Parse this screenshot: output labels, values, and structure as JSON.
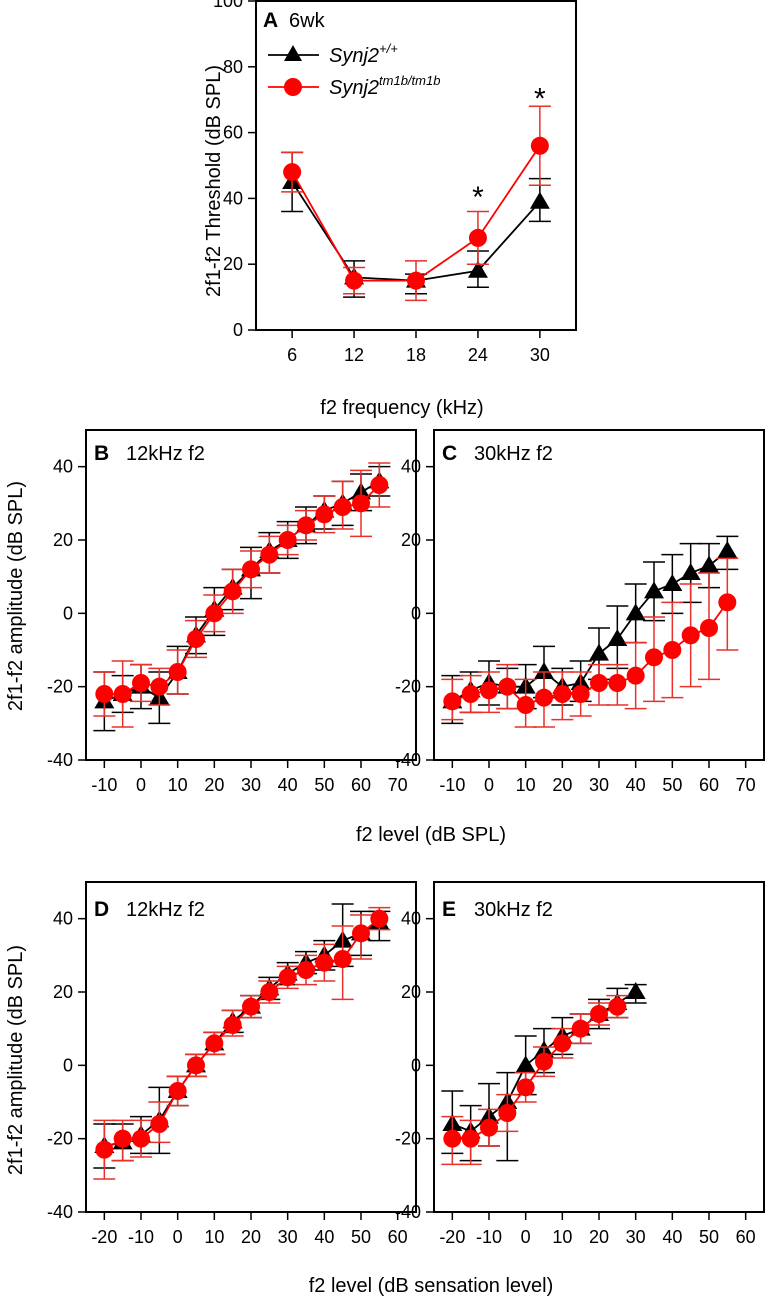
{
  "colors": {
    "wt": "#000000",
    "mut": "#ff0000",
    "mut_err": "#e8312a"
  },
  "chart_data": [
    {
      "id": "A",
      "type": "line",
      "panel_letter": "A",
      "panel_title": "6wk",
      "xlabel": "f2 frequency (kHz)",
      "ylabel": "2f1-f2 Threshold (dB SPL)",
      "xticks": [
        6,
        12,
        18,
        24,
        30
      ],
      "yticks": [
        0,
        20,
        40,
        60,
        80,
        100
      ],
      "xlim": [
        2.5,
        33.5
      ],
      "ylim": [
        0,
        100
      ],
      "legend": [
        {
          "base": "Synj2",
          "sup": "+/+",
          "series": "wt"
        },
        {
          "base": "Synj2",
          "sup": "tm1b/tm1b",
          "series": "mut"
        }
      ],
      "annotations": [
        {
          "x": 24,
          "y": 44,
          "text": "*"
        },
        {
          "x": 30,
          "y": 74,
          "text": "*"
        }
      ],
      "series": [
        {
          "key": "wt",
          "name": "Synj2+/+",
          "marker": "triangle",
          "x": [
            6,
            12,
            18,
            24,
            30
          ],
          "y": [
            45,
            16,
            15,
            18,
            39
          ],
          "err": [
            [
              36,
              54
            ],
            [
              10,
              21
            ],
            [
              11,
              17
            ],
            [
              13,
              24
            ],
            [
              33,
              46
            ]
          ]
        },
        {
          "key": "mut",
          "name": "Synj2tm1b/tm1b",
          "marker": "circle",
          "x": [
            6,
            12,
            18,
            24,
            30
          ],
          "y": [
            48,
            15,
            15,
            28,
            56
          ],
          "err": [
            [
              42,
              54
            ],
            [
              11,
              19
            ],
            [
              9,
              21
            ],
            [
              20,
              36
            ],
            [
              44,
              68
            ]
          ]
        }
      ]
    },
    {
      "id": "B",
      "type": "line",
      "panel_letter": "B",
      "panel_title": "12kHz f2",
      "xlabel": "f2 level (dB SPL)",
      "ylabel": "2f1-f2 amplitude (dB SPL)",
      "xticks": [
        -10,
        0,
        10,
        20,
        30,
        40,
        50,
        60,
        70
      ],
      "yticks": [
        -40,
        -20,
        0,
        20,
        40
      ],
      "xlim": [
        -15,
        75
      ],
      "ylim": [
        -40,
        50
      ],
      "series": [
        {
          "key": "wt",
          "name": "Synj2+/+",
          "marker": "triangle",
          "x": [
            -10,
            -5,
            0,
            5,
            10,
            15,
            20,
            25,
            30,
            35,
            40,
            45,
            50,
            55,
            60,
            65
          ],
          "y": [
            -24,
            -22,
            -20,
            -23,
            -16,
            -6,
            1,
            7,
            12,
            17,
            20,
            24,
            28,
            30,
            33,
            36
          ],
          "err": [
            [
              -32,
              -16
            ],
            [
              -27,
              -17
            ],
            [
              -26,
              -14
            ],
            [
              -30,
              -16
            ],
            [
              -22,
              -9
            ],
            [
              -11,
              -1
            ],
            [
              -6,
              7
            ],
            [
              1,
              12
            ],
            [
              4,
              18
            ],
            [
              11,
              22
            ],
            [
              15,
              25
            ],
            [
              19,
              29
            ],
            [
              23,
              32
            ],
            [
              24,
              36
            ],
            [
              28,
              38
            ],
            [
              32,
              40
            ]
          ]
        },
        {
          "key": "mut",
          "name": "Synj2tm1b/tm1b",
          "marker": "circle",
          "x": [
            -10,
            -5,
            0,
            5,
            10,
            15,
            20,
            25,
            30,
            35,
            40,
            45,
            50,
            55,
            60,
            65
          ],
          "y": [
            -22,
            -22,
            -19,
            -20,
            -16,
            -7,
            0,
            6,
            12,
            16,
            20,
            24,
            27,
            29,
            30,
            35
          ],
          "err": [
            [
              -28,
              -16
            ],
            [
              -31,
              -13
            ],
            [
              -24,
              -14
            ],
            [
              -25,
              -15
            ],
            [
              -22,
              -10
            ],
            [
              -12,
              -2
            ],
            [
              -5,
              5
            ],
            [
              0,
              12
            ],
            [
              7,
              17
            ],
            [
              11,
              21
            ],
            [
              16,
              24
            ],
            [
              20,
              28
            ],
            [
              22,
              32
            ],
            [
              23,
              36
            ],
            [
              21,
              39
            ],
            [
              29,
              41
            ]
          ]
        }
      ]
    },
    {
      "id": "C",
      "type": "line",
      "panel_letter": "C",
      "panel_title": "30kHz f2",
      "xlabel": "f2 level (dB SPL)",
      "ylabel": "",
      "xticks": [
        -10,
        0,
        10,
        20,
        30,
        40,
        50,
        60,
        70
      ],
      "yticks": [
        -40,
        -20,
        0,
        20,
        40
      ],
      "xlim": [
        -15,
        75
      ],
      "ylim": [
        -40,
        50
      ],
      "series": [
        {
          "key": "wt",
          "name": "Synj2+/+",
          "marker": "triangle",
          "x": [
            -10,
            -5,
            0,
            5,
            10,
            15,
            20,
            25,
            30,
            35,
            40,
            45,
            50,
            55,
            60,
            65
          ],
          "y": [
            -24,
            -21,
            -19,
            -20,
            -20,
            -16,
            -20,
            -19,
            -11,
            -7,
            0,
            6,
            8,
            11,
            13,
            17
          ],
          "err": [
            [
              -30,
              -17
            ],
            [
              -27,
              -16
            ],
            [
              -25,
              -13
            ],
            [
              -26,
              -15
            ],
            [
              -26,
              -14
            ],
            [
              -23,
              -9
            ],
            [
              -25,
              -15
            ],
            [
              -24,
              -13
            ],
            [
              -18,
              -4
            ],
            [
              -15,
              2
            ],
            [
              -8,
              8
            ],
            [
              -2,
              14
            ],
            [
              0,
              16
            ],
            [
              3,
              19
            ],
            [
              7,
              19
            ],
            [
              12,
              21
            ]
          ]
        },
        {
          "key": "mut",
          "name": "Synj2tm1b/tm1b",
          "marker": "circle",
          "x": [
            -10,
            -5,
            0,
            5,
            10,
            15,
            20,
            25,
            30,
            35,
            40,
            45,
            50,
            55,
            60,
            65
          ],
          "y": [
            -24,
            -22,
            -21,
            -20,
            -25,
            -23,
            -22,
            -22,
            -19,
            -19,
            -17,
            -12,
            -10,
            -6,
            -4,
            3
          ],
          "err": [
            [
              -29,
              -18
            ],
            [
              -27,
              -17
            ],
            [
              -27,
              -16
            ],
            [
              -26,
              -14
            ],
            [
              -31,
              -18
            ],
            [
              -31,
              -16
            ],
            [
              -29,
              -16
            ],
            [
              -28,
              -16
            ],
            [
              -25,
              -14
            ],
            [
              -25,
              -14
            ],
            [
              -26,
              -8
            ],
            [
              -24,
              -1
            ],
            [
              -23,
              3
            ],
            [
              -20,
              8
            ],
            [
              -18,
              11
            ],
            [
              -10,
              15
            ]
          ]
        }
      ]
    },
    {
      "id": "D",
      "type": "line",
      "panel_letter": "D",
      "panel_title": "12kHz f2",
      "xlabel": "f2 level (dB sensation level)",
      "ylabel": "2f1-f2 amplitude (dB SPL)",
      "xticks": [
        -20,
        -10,
        0,
        10,
        20,
        30,
        40,
        50,
        60
      ],
      "yticks": [
        -40,
        -20,
        0,
        20,
        40
      ],
      "xlim": [
        -25,
        65
      ],
      "ylim": [
        -40,
        50
      ],
      "series": [
        {
          "key": "wt",
          "name": "Synj2+/+",
          "marker": "triangle",
          "x": [
            -20,
            -15,
            -10,
            -5,
            0,
            5,
            10,
            15,
            20,
            25,
            30,
            35,
            40,
            45,
            50,
            55
          ],
          "y": [
            -22,
            -21,
            -19,
            -15,
            -7,
            0,
            6,
            12,
            16,
            21,
            25,
            28,
            30,
            34,
            36,
            39
          ],
          "err": [
            [
              -28,
              -16
            ],
            [
              -26,
              -16
            ],
            [
              -24,
              -14
            ],
            [
              -24,
              -6
            ],
            [
              -11,
              -3
            ],
            [
              -3,
              3
            ],
            [
              3,
              9
            ],
            [
              9,
              15
            ],
            [
              13,
              19
            ],
            [
              18,
              24
            ],
            [
              22,
              28
            ],
            [
              25,
              31
            ],
            [
              26,
              34
            ],
            [
              27,
              44
            ],
            [
              30,
              42
            ],
            [
              34,
              42
            ]
          ]
        },
        {
          "key": "mut",
          "name": "Synj2tm1b/tm1b",
          "marker": "circle",
          "x": [
            -20,
            -15,
            -10,
            -5,
            0,
            5,
            10,
            15,
            20,
            25,
            30,
            35,
            40,
            45,
            50,
            55
          ],
          "y": [
            -23,
            -20,
            -20,
            -16,
            -7,
            0,
            6,
            11,
            16,
            20,
            24,
            26,
            28,
            29,
            36,
            40
          ],
          "err": [
            [
              -31,
              -15
            ],
            [
              -26,
              -15
            ],
            [
              -25,
              -15
            ],
            [
              -21,
              -10
            ],
            [
              -11,
              -3
            ],
            [
              -3,
              3
            ],
            [
              3,
              9
            ],
            [
              8,
              15
            ],
            [
              13,
              19
            ],
            [
              17,
              23
            ],
            [
              21,
              27
            ],
            [
              22,
              30
            ],
            [
              23,
              33
            ],
            [
              18,
              38
            ],
            [
              29,
              41
            ],
            [
              37,
              43
            ]
          ]
        }
      ]
    },
    {
      "id": "E",
      "type": "line",
      "panel_letter": "E",
      "panel_title": "30kHz f2",
      "xlabel": "f2 level (dB sensation level)",
      "ylabel": "",
      "xticks": [
        -20,
        -10,
        0,
        10,
        20,
        30,
        40,
        50,
        60
      ],
      "yticks": [
        -40,
        -20,
        0,
        20,
        40
      ],
      "xlim": [
        -25,
        65
      ],
      "ylim": [
        -40,
        50
      ],
      "series": [
        {
          "key": "wt",
          "name": "Synj2+/+",
          "marker": "triangle",
          "x": [
            -20,
            -15,
            -10,
            -5,
            0,
            5,
            10,
            15,
            20,
            25,
            30
          ],
          "y": [
            -16,
            -18,
            -14,
            -10,
            0,
            4,
            8,
            10,
            14,
            17,
            20
          ],
          "err": [
            [
              -24,
              -7
            ],
            [
              -26,
              -11
            ],
            [
              -22,
              -5
            ],
            [
              -26,
              -2
            ],
            [
              -8,
              8
            ],
            [
              -2,
              10
            ],
            [
              3,
              13
            ],
            [
              6,
              14
            ],
            [
              10,
              18
            ],
            [
              13,
              21
            ],
            [
              17,
              22
            ]
          ]
        },
        {
          "key": "mut",
          "name": "Synj2tm1b/tm1b",
          "marker": "circle",
          "x": [
            -20,
            -15,
            -10,
            -5,
            0,
            5,
            10,
            15,
            20,
            25
          ],
          "y": [
            -20,
            -20,
            -17,
            -13,
            -6,
            1,
            6,
            10,
            14,
            16
          ],
          "err": [
            [
              -27,
              -14
            ],
            [
              -27,
              -15
            ],
            [
              -22,
              -12
            ],
            [
              -18,
              -8
            ],
            [
              -10,
              -2
            ],
            [
              -3,
              5
            ],
            [
              2,
              10
            ],
            [
              6,
              14
            ],
            [
              11,
              17
            ],
            [
              13,
              19
            ]
          ]
        }
      ]
    }
  ],
  "shared": {
    "x_title_row1": "f2 level (dB SPL)",
    "x_title_row2": "f2 level (dB sensation level)"
  }
}
